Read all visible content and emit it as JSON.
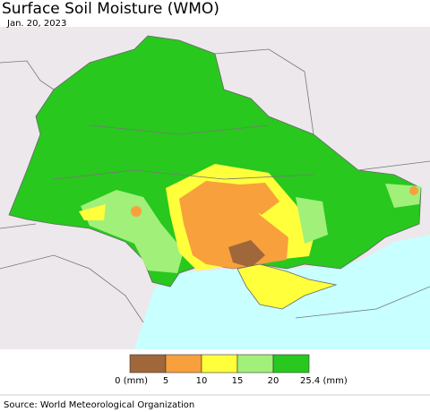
{
  "header": {
    "title": "Surface Soil Moisture (WMO)",
    "date": "Jan. 20, 2023"
  },
  "legend": {
    "colors": [
      "#a0673a",
      "#f8a03c",
      "#ffff3c",
      "#a0f07a",
      "#28c81e"
    ],
    "labels": [
      "0 (mm)",
      "5",
      "10",
      "15",
      "20",
      "25.4 (mm)"
    ]
  },
  "footer": {
    "source": "Source: World Meteorological Organization"
  }
}
